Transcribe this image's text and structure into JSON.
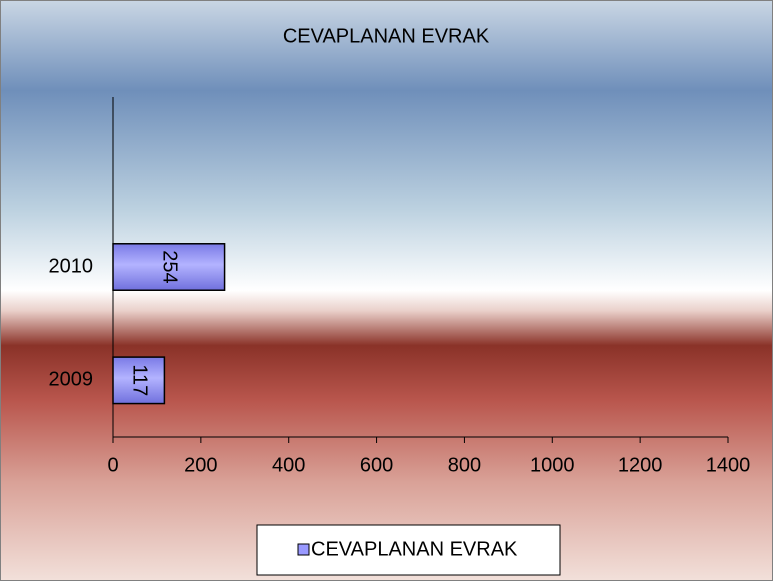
{
  "chart_data": {
    "type": "bar",
    "orientation": "horizontal",
    "title": "CEVAPLANAN EVRAK",
    "categories": [
      "2009",
      "2010",
      null
    ],
    "series": [
      {
        "name": "CEVAPLANAN EVRAK",
        "color": "#9999ff",
        "values": [
          117,
          254,
          null
        ]
      }
    ],
    "xlim": [
      0,
      1400
    ],
    "xticks": [
      0,
      200,
      400,
      600,
      800,
      1000,
      1200,
      1400
    ],
    "grid": false,
    "legend": "bottom"
  }
}
